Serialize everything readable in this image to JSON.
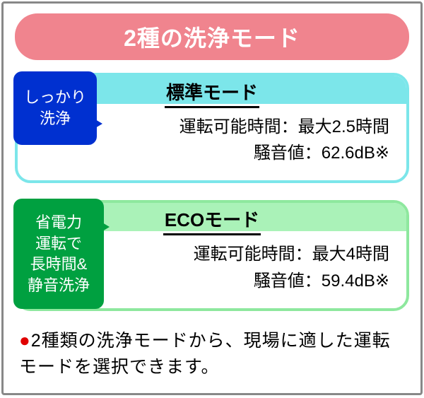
{
  "title": "2種の洗浄モード",
  "modes": [
    {
      "name": "標準モード",
      "speech": "しっかり\n洗浄",
      "line1": "運転可能時間：最大2.5時間",
      "line2": "騒音値：62.6dB※",
      "header_color": "#7ce6ea",
      "border_color": "#7ce6ea",
      "speech_bg": "#0030d0"
    },
    {
      "name": "ECOモード",
      "speech": "省電力\n運転で\n長時間&\n静音洗浄",
      "line1": "運転可能時間：最大4時間",
      "line2": "騒音値：59.4dB※",
      "header_color": "#aaf2b8",
      "border_color": "#8ee89e",
      "speech_bg": "#00a040"
    }
  ],
  "footnote_bullet": "●",
  "footnote_text": "2種類の洗浄モードから、現場に適した運転モードを選択できます。",
  "frame_color": "#888888",
  "bullet_color": "#e00000"
}
